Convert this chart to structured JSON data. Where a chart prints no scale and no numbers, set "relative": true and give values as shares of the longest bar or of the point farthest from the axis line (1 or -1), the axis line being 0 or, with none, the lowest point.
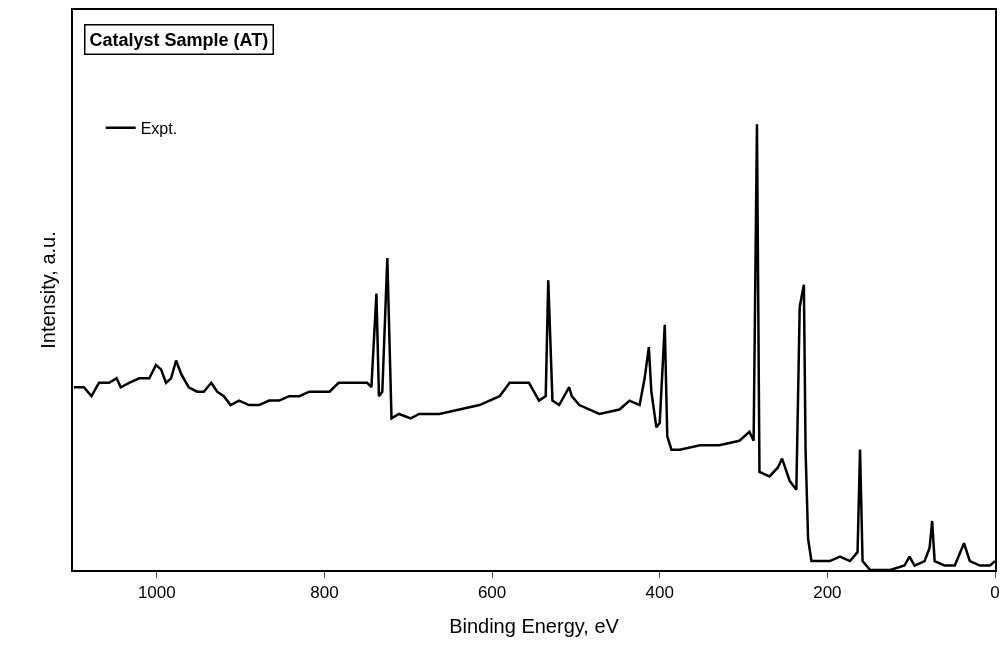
{
  "chart_data": {
    "type": "line",
    "title": "Catalyst Sample (AT)",
    "xlabel": "Binding Energy, eV",
    "ylabel": "Intensity, a.u.",
    "relative": true,
    "xlim": [
      1100,
      0
    ],
    "xticks": [
      1000,
      800,
      600,
      400,
      200,
      0
    ],
    "legend": "top left",
    "grid": false,
    "marker": "none",
    "line_style": "solid",
    "x": [
      1099,
      1087,
      1078,
      1069,
      1057,
      1048,
      1043,
      1033,
      1021,
      1009,
      1001,
      995,
      989,
      983,
      977,
      971,
      962,
      952,
      944,
      935,
      928,
      920,
      912,
      902,
      890,
      878,
      866,
      854,
      842,
      830,
      818,
      806,
      794,
      783,
      771,
      759,
      749,
      744,
      738,
      735,
      731,
      725,
      720,
      711,
      697,
      687,
      663,
      639,
      615,
      591,
      579,
      562,
      556,
      544,
      536,
      533,
      528,
      520,
      508,
      505,
      496,
      472,
      448,
      436,
      424,
      418,
      413,
      410,
      404,
      400,
      394,
      391,
      386,
      376,
      352,
      329,
      305,
      293,
      288,
      284,
      281,
      269,
      259,
      254,
      245,
      237,
      233,
      228,
      226,
      223,
      219,
      197,
      185,
      173,
      164,
      161,
      158,
      149,
      125,
      108,
      102,
      96,
      84,
      78,
      75,
      72,
      60,
      48,
      37,
      30,
      18,
      6,
      0
    ],
    "series": [
      {
        "name": "Expt.",
        "color": "#000000",
        "values": [
          0.41,
          0.41,
          0.39,
          0.42,
          0.42,
          0.43,
          0.41,
          0.42,
          0.43,
          0.43,
          0.46,
          0.45,
          0.42,
          0.43,
          0.47,
          0.44,
          0.41,
          0.4,
          0.4,
          0.42,
          0.4,
          0.39,
          0.37,
          0.38,
          0.37,
          0.37,
          0.38,
          0.38,
          0.39,
          0.39,
          0.4,
          0.4,
          0.4,
          0.42,
          0.42,
          0.42,
          0.42,
          0.41,
          0.62,
          0.39,
          0.4,
          0.7,
          0.34,
          0.35,
          0.34,
          0.35,
          0.35,
          0.36,
          0.37,
          0.39,
          0.42,
          0.42,
          0.42,
          0.38,
          0.39,
          0.65,
          0.38,
          0.37,
          0.41,
          0.39,
          0.37,
          0.35,
          0.36,
          0.38,
          0.37,
          0.43,
          0.5,
          0.4,
          0.32,
          0.33,
          0.55,
          0.3,
          0.27,
          0.27,
          0.28,
          0.28,
          0.29,
          0.31,
          0.29,
          1.0,
          0.22,
          0.21,
          0.23,
          0.25,
          0.2,
          0.18,
          0.59,
          0.64,
          0.27,
          0.07,
          0.02,
          0.02,
          0.03,
          0.02,
          0.04,
          0.27,
          0.02,
          0.0,
          0.0,
          0.01,
          0.03,
          0.01,
          0.02,
          0.05,
          0.11,
          0.02,
          0.01,
          0.01,
          0.06,
          0.02,
          0.01,
          0.01,
          0.02
        ]
      }
    ]
  }
}
